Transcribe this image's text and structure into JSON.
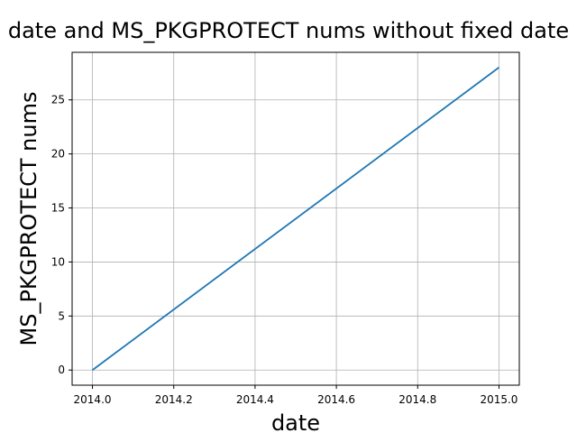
{
  "chart_data": {
    "type": "line",
    "title": "date and MS_PKGPROTECT nums without fixed date",
    "xlabel": "date",
    "ylabel": "MS_PKGPROTECT nums",
    "xlim": [
      2013.95,
      2015.05
    ],
    "ylim": [
      -1.4,
      29.4
    ],
    "grid": true,
    "x_ticks": [
      2014.0,
      2014.2,
      2014.4,
      2014.6,
      2014.8,
      2015.0
    ],
    "x_tick_labels": [
      "2014.0",
      "2014.2",
      "2014.4",
      "2014.6",
      "2014.8",
      "2015.0"
    ],
    "y_ticks": [
      0,
      5,
      10,
      15,
      20,
      25
    ],
    "y_tick_labels": [
      "0",
      "5",
      "10",
      "15",
      "20",
      "25"
    ],
    "series": [
      {
        "color": "#1f77b4",
        "x": [
          2014.0,
          2015.0
        ],
        "y": [
          0,
          28
        ]
      }
    ]
  }
}
